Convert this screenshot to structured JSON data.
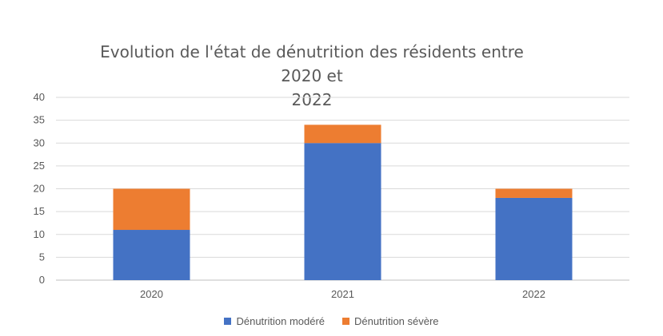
{
  "chart_data": {
    "type": "bar",
    "stacked": true,
    "title": "Evolution de l'état de dénutrition des résidents entre 2020 et 2022",
    "title_lines": [
      "Evolution de l'état de dénutrition des résidents entre 2020 et",
      "2022"
    ],
    "categories": [
      "2020",
      "2021",
      "2022"
    ],
    "series": [
      {
        "name": "Dénutrition modéré",
        "color": "#4472C4",
        "values": [
          11,
          30,
          18
        ]
      },
      {
        "name": "Dénutrition sévère",
        "color": "#ED7D31",
        "values": [
          9,
          4,
          2
        ]
      }
    ],
    "ylim": [
      0,
      40
    ],
    "yticks": [
      "0",
      "5",
      "10",
      "15",
      "20",
      "25",
      "30",
      "35",
      "40"
    ],
    "grid": true,
    "legend_position": "bottom"
  }
}
